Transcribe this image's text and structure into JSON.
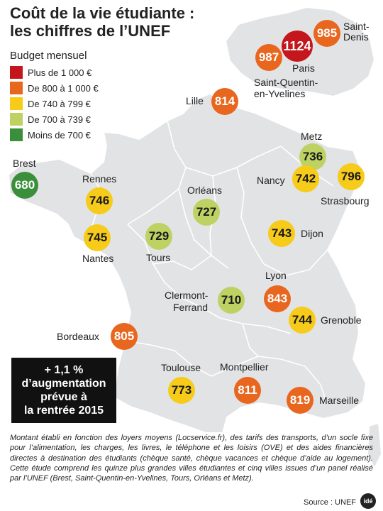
{
  "title": {
    "line1": "Coût de la vie étudiante :",
    "line2": "les chiffres de l’UNEF"
  },
  "legend": {
    "title": "Budget mensuel",
    "items": [
      {
        "label": "Plus de 1 000 €",
        "color": "#c4161c"
      },
      {
        "label": "De 800 à 1 000 €",
        "color": "#e8661e"
      },
      {
        "label": "De 740 à 799 €",
        "color": "#f6cb1a"
      },
      {
        "label": "De 700 à 739 €",
        "color": "#bdd262"
      },
      {
        "label": "Moins de 700 €",
        "color": "#3b8f3a"
      }
    ]
  },
  "cities": {
    "paris": {
      "name": "Paris",
      "value": "1124"
    },
    "saint_denis": {
      "name": "Saint-Denis",
      "value": "985"
    },
    "saint_quentin": {
      "name_line1": "Saint-Quentin-",
      "name_line2": "en-Yvelines",
      "value": "987"
    },
    "lille": {
      "name": "Lille",
      "value": "814"
    },
    "metz": {
      "name": "Metz",
      "value": "736"
    },
    "nancy": {
      "name": "Nancy",
      "value": "742"
    },
    "strasbourg": {
      "name": "Strasbourg",
      "value": "796"
    },
    "brest": {
      "name": "Brest",
      "value": "680"
    },
    "rennes": {
      "name": "Rennes",
      "value": "746"
    },
    "nantes": {
      "name": "Nantes",
      "value": "745"
    },
    "orleans": {
      "name": "Orléans",
      "value": "727"
    },
    "tours": {
      "name": "Tours",
      "value": "729"
    },
    "dijon": {
      "name": "Dijon",
      "value": "743"
    },
    "lyon": {
      "name": "Lyon",
      "value": "843"
    },
    "clermont": {
      "name_line1": "Clermont-",
      "name_line2": "Ferrand",
      "value": "710"
    },
    "grenoble": {
      "name": "Grenoble",
      "value": "744"
    },
    "bordeaux": {
      "name": "Bordeaux",
      "value": "805"
    },
    "toulouse": {
      "name": "Toulouse",
      "value": "773"
    },
    "montpellier": {
      "name": "Montpellier",
      "value": "811"
    },
    "marseille": {
      "name": "Marseille",
      "value": "819"
    }
  },
  "callout": {
    "line1": "+ 1,1 %",
    "line2": "d’augmentation",
    "line3": "prévue à",
    "line4": "la rentrée 2015"
  },
  "footnote": "Montant établi en fonction des loyers moyens (Locservice.fr), des tarifs des transports, d’un socle fixe pour l’alimentation, les charges, les livres, le téléphone et les loisirs (OVE) et des aides financières directes à destination des étudiants (chèque santé, chèque vacances et chèque d’aide au logement). Cette étude comprend les quinze plus grandes villes étudiantes et cinq villes issues d’un panel réalisé par l’UNEF (Brest, Saint-Quentin-en-Yvelines, Tours, Orléans et Metz).",
  "source": "Source : UNEF",
  "logo": "idé"
}
